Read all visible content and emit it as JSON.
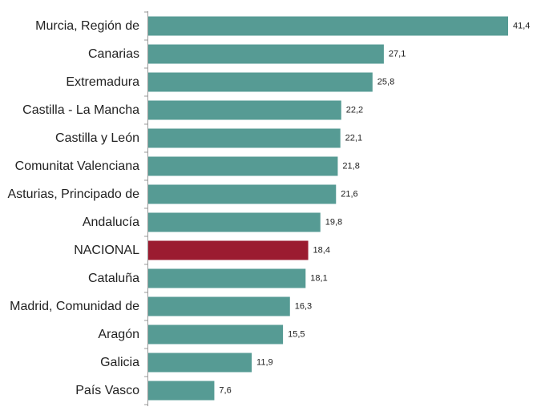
{
  "chart_data": {
    "type": "bar",
    "orientation": "horizontal",
    "title": "",
    "xlabel": "",
    "ylabel": "",
    "categories": [
      "Murcia, Región de",
      "Canarias",
      "Extremadura",
      "Castilla - La Mancha",
      "Castilla y León",
      "Comunitat Valenciana",
      "Asturias, Principado de",
      "Andalucía",
      "NACIONAL",
      "Cataluña",
      "Madrid, Comunidad de",
      "Aragón",
      "Galicia",
      "País Vasco"
    ],
    "values": [
      41.4,
      27.1,
      25.8,
      22.2,
      22.1,
      21.8,
      21.6,
      19.8,
      18.4,
      18.1,
      16.3,
      15.5,
      11.9,
      7.6
    ],
    "value_labels": [
      "41,4",
      "27,1",
      "25,8",
      "22,2",
      "22,1",
      "21,8",
      "21,6",
      "19,8",
      "18,4",
      "18,1",
      "16,3",
      "15,5",
      "11,9",
      "7,6"
    ],
    "highlight_category": "NACIONAL",
    "xlim": [
      0,
      41.4
    ],
    "grid": false,
    "legend": "none",
    "colors": {
      "bar": "#569b94",
      "highlight": "#9b1b30",
      "axis": "#999999",
      "text": "#222222"
    }
  }
}
